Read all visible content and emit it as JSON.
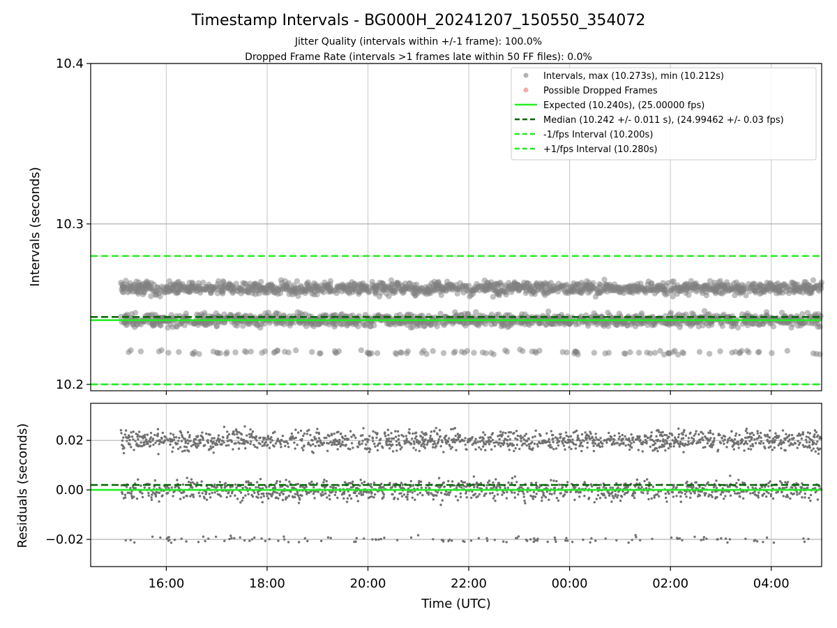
{
  "chart_data": [
    {
      "type": "scatter",
      "title": "Timestamp Intervals - BG000H_20241207_150550_354072",
      "subtitle": [
        "Jitter Quality (intervals within +/-1 frame): 100.0%",
        "Dropped Frame Rate (intervals >1 frames late within 50 FF files): 0.0%"
      ],
      "xlabel": "",
      "ylabel": "Intervals (seconds)",
      "ylim": [
        10.196,
        10.4
      ],
      "yticks": [
        10.2,
        10.3,
        10.4
      ],
      "ytick_labels": [
        "10.2",
        "10.3",
        "10.4"
      ],
      "grid": true,
      "legend_position": "top-right",
      "x_range_hours": [
        14.5,
        29.0
      ],
      "data_start_hour": 15.1,
      "data_end_hour": 29.0,
      "series": [
        {
          "name": "Intervals, max (10.273s), min (10.212s)",
          "color": "#808080",
          "marker": "circle",
          "clusters": [
            {
              "center": 10.26,
              "spread": 0.004,
              "fraction": 0.5
            },
            {
              "center": 10.24,
              "spread": 0.004,
              "fraction": 0.45
            },
            {
              "center": 10.22,
              "spread": 0.0015,
              "fraction": 0.05
            }
          ],
          "max": 10.273,
          "min": 10.212
        },
        {
          "name": "Possible Dropped Frames",
          "color": "#f07070",
          "marker": "circle",
          "values": []
        }
      ],
      "reference_lines": [
        {
          "name": "Expected (10.240s), (25.00000 fps)",
          "value": 10.24,
          "color": "#22ee22",
          "style": "solid"
        },
        {
          "name": "Median (10.242 +/- 0.011 s), (24.99462 +/- 0.03 fps)",
          "value": 10.242,
          "color": "#006600",
          "style": "dashed"
        },
        {
          "name": "-1/fps Interval (10.200s)",
          "value": 10.2,
          "color": "#22ee22",
          "style": "dashed"
        },
        {
          "name": "+1/fps Interval (10.280s)",
          "value": 10.28,
          "color": "#22ee22",
          "style": "dashed"
        }
      ]
    },
    {
      "type": "scatter",
      "xlabel": "Time (UTC)",
      "ylabel": "Residuals (seconds)",
      "ylim": [
        -0.031,
        0.035
      ],
      "yticks": [
        -0.02,
        0.0,
        0.02
      ],
      "ytick_labels": [
        "−0.02",
        "0.00",
        "0.02"
      ],
      "x_ticks_hours": [
        16,
        18,
        20,
        22,
        24,
        26,
        28
      ],
      "x_tick_labels": [
        "16:00",
        "18:00",
        "20:00",
        "22:00",
        "00:00",
        "02:00",
        "04:00"
      ],
      "grid": true,
      "series": [
        {
          "color": "#707070",
          "marker": "circle",
          "clusters": [
            {
              "center": 0.02,
              "spread": 0.004,
              "fraction": 0.5
            },
            {
              "center": 0.0,
              "spread": 0.004,
              "fraction": 0.45
            },
            {
              "center": -0.02,
              "spread": 0.0015,
              "fraction": 0.05
            }
          ]
        }
      ],
      "reference_lines": [
        {
          "value": 0.0,
          "color": "#22ee22",
          "style": "solid"
        },
        {
          "value": 0.002,
          "color": "#006600",
          "style": "dashed"
        }
      ]
    }
  ]
}
